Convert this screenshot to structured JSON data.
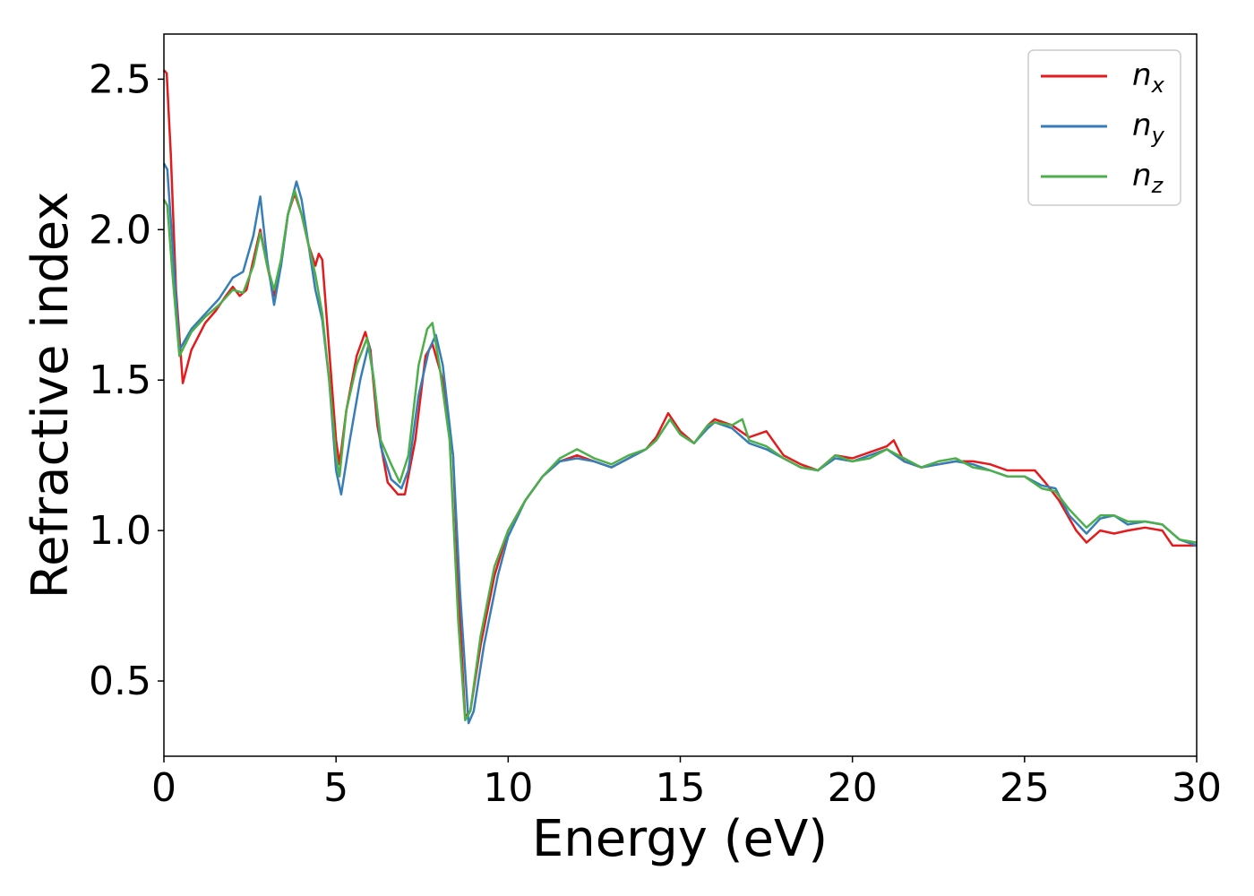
{
  "chart_data": {
    "type": "line",
    "title": "",
    "xlabel": "Energy (eV)",
    "ylabel": "Refractive index",
    "xlim": [
      0,
      30
    ],
    "ylim": [
      0.25,
      2.65
    ],
    "x_ticks": [
      0,
      5,
      10,
      15,
      20,
      25,
      30
    ],
    "x_tick_labels": [
      "0",
      "5",
      "10",
      "15",
      "20",
      "25",
      "30"
    ],
    "y_ticks": [
      0.5,
      1.0,
      1.5,
      2.0,
      2.5
    ],
    "y_tick_labels": [
      "0.5",
      "1.0",
      "1.5",
      "2.0",
      "2.5"
    ],
    "grid": false,
    "legend_position": "top-right",
    "series": [
      {
        "name": "n_x",
        "label_base": "n",
        "label_sub": "x",
        "color": "#e41a1c",
        "points": [
          [
            0,
            2.53
          ],
          [
            0.08,
            2.52
          ],
          [
            0.2,
            2.25
          ],
          [
            0.35,
            1.8
          ],
          [
            0.55,
            1.49
          ],
          [
            0.8,
            1.6
          ],
          [
            1.2,
            1.69
          ],
          [
            1.5,
            1.73
          ],
          [
            1.8,
            1.78
          ],
          [
            2.0,
            1.81
          ],
          [
            2.2,
            1.78
          ],
          [
            2.4,
            1.8
          ],
          [
            2.6,
            1.9
          ],
          [
            2.8,
            2.0
          ],
          [
            3.0,
            1.88
          ],
          [
            3.2,
            1.78
          ],
          [
            3.4,
            1.88
          ],
          [
            3.6,
            2.05
          ],
          [
            3.8,
            2.12
          ],
          [
            4.0,
            2.05
          ],
          [
            4.2,
            1.95
          ],
          [
            4.4,
            1.88
          ],
          [
            4.5,
            1.92
          ],
          [
            4.6,
            1.9
          ],
          [
            4.8,
            1.6
          ],
          [
            5.0,
            1.3
          ],
          [
            5.1,
            1.22
          ],
          [
            5.3,
            1.4
          ],
          [
            5.6,
            1.58
          ],
          [
            5.85,
            1.66
          ],
          [
            6.0,
            1.6
          ],
          [
            6.2,
            1.35
          ],
          [
            6.5,
            1.16
          ],
          [
            6.8,
            1.12
          ],
          [
            7.0,
            1.12
          ],
          [
            7.3,
            1.3
          ],
          [
            7.6,
            1.58
          ],
          [
            7.8,
            1.62
          ],
          [
            8.1,
            1.5
          ],
          [
            8.4,
            1.25
          ],
          [
            8.6,
            0.7
          ],
          [
            8.75,
            0.38
          ],
          [
            8.9,
            0.4
          ],
          [
            9.2,
            0.62
          ],
          [
            9.6,
            0.85
          ],
          [
            10,
            1.0
          ],
          [
            10.5,
            1.1
          ],
          [
            11,
            1.18
          ],
          [
            11.5,
            1.23
          ],
          [
            12,
            1.25
          ],
          [
            12.5,
            1.23
          ],
          [
            13,
            1.21
          ],
          [
            13.5,
            1.24
          ],
          [
            14,
            1.27
          ],
          [
            14.3,
            1.31
          ],
          [
            14.65,
            1.39
          ],
          [
            15,
            1.33
          ],
          [
            15.4,
            1.29
          ],
          [
            15.8,
            1.35
          ],
          [
            16,
            1.37
          ],
          [
            16.5,
            1.35
          ],
          [
            17,
            1.31
          ],
          [
            17.5,
            1.33
          ],
          [
            18,
            1.25
          ],
          [
            18.5,
            1.22
          ],
          [
            19,
            1.2
          ],
          [
            19.5,
            1.25
          ],
          [
            20,
            1.24
          ],
          [
            20.5,
            1.26
          ],
          [
            21,
            1.28
          ],
          [
            21.2,
            1.3
          ],
          [
            21.5,
            1.23
          ],
          [
            22,
            1.21
          ],
          [
            22.5,
            1.22
          ],
          [
            23,
            1.23
          ],
          [
            23.5,
            1.23
          ],
          [
            24,
            1.22
          ],
          [
            24.5,
            1.2
          ],
          [
            25,
            1.2
          ],
          [
            25.3,
            1.2
          ],
          [
            25.6,
            1.16
          ],
          [
            26,
            1.1
          ],
          [
            26.5,
            1.0
          ],
          [
            26.8,
            0.96
          ],
          [
            27.2,
            1.0
          ],
          [
            27.6,
            0.99
          ],
          [
            28,
            1.0
          ],
          [
            28.5,
            1.01
          ],
          [
            29,
            1.0
          ],
          [
            29.3,
            0.95
          ],
          [
            29.6,
            0.95
          ],
          [
            30,
            0.95
          ]
        ]
      },
      {
        "name": "n_y",
        "label_base": "n",
        "label_sub": "y",
        "color": "#377eb8",
        "points": [
          [
            0,
            2.22
          ],
          [
            0.1,
            2.2
          ],
          [
            0.25,
            1.95
          ],
          [
            0.45,
            1.6
          ],
          [
            0.8,
            1.67
          ],
          [
            1.2,
            1.72
          ],
          [
            1.6,
            1.77
          ],
          [
            2.0,
            1.84
          ],
          [
            2.3,
            1.86
          ],
          [
            2.6,
            1.98
          ],
          [
            2.8,
            2.11
          ],
          [
            3.0,
            1.9
          ],
          [
            3.2,
            1.75
          ],
          [
            3.4,
            1.88
          ],
          [
            3.6,
            2.05
          ],
          [
            3.85,
            2.16
          ],
          [
            4.0,
            2.1
          ],
          [
            4.2,
            1.95
          ],
          [
            4.4,
            1.8
          ],
          [
            4.6,
            1.7
          ],
          [
            4.8,
            1.5
          ],
          [
            5.0,
            1.2
          ],
          [
            5.15,
            1.12
          ],
          [
            5.4,
            1.3
          ],
          [
            5.7,
            1.5
          ],
          [
            5.95,
            1.62
          ],
          [
            6.1,
            1.5
          ],
          [
            6.3,
            1.28
          ],
          [
            6.6,
            1.17
          ],
          [
            6.9,
            1.14
          ],
          [
            7.1,
            1.2
          ],
          [
            7.4,
            1.45
          ],
          [
            7.7,
            1.6
          ],
          [
            7.9,
            1.65
          ],
          [
            8.1,
            1.55
          ],
          [
            8.4,
            1.25
          ],
          [
            8.6,
            0.8
          ],
          [
            8.85,
            0.36
          ],
          [
            9.0,
            0.4
          ],
          [
            9.3,
            0.62
          ],
          [
            9.7,
            0.85
          ],
          [
            10,
            0.98
          ],
          [
            10.5,
            1.1
          ],
          [
            11,
            1.18
          ],
          [
            11.5,
            1.23
          ],
          [
            12,
            1.24
          ],
          [
            12.5,
            1.23
          ],
          [
            13,
            1.21
          ],
          [
            13.5,
            1.24
          ],
          [
            14,
            1.27
          ],
          [
            14.3,
            1.3
          ],
          [
            14.7,
            1.37
          ],
          [
            15,
            1.32
          ],
          [
            15.4,
            1.29
          ],
          [
            15.8,
            1.34
          ],
          [
            16,
            1.36
          ],
          [
            16.5,
            1.34
          ],
          [
            17,
            1.29
          ],
          [
            17.5,
            1.27
          ],
          [
            18,
            1.24
          ],
          [
            18.5,
            1.21
          ],
          [
            19,
            1.2
          ],
          [
            19.5,
            1.24
          ],
          [
            20,
            1.23
          ],
          [
            20.5,
            1.25
          ],
          [
            21,
            1.27
          ],
          [
            21.5,
            1.23
          ],
          [
            22,
            1.21
          ],
          [
            22.5,
            1.22
          ],
          [
            23,
            1.23
          ],
          [
            23.5,
            1.22
          ],
          [
            24,
            1.2
          ],
          [
            24.5,
            1.18
          ],
          [
            25,
            1.18
          ],
          [
            25.5,
            1.15
          ],
          [
            25.9,
            1.14
          ],
          [
            26.3,
            1.05
          ],
          [
            26.8,
            0.99
          ],
          [
            27.2,
            1.04
          ],
          [
            27.6,
            1.05
          ],
          [
            28,
            1.02
          ],
          [
            28.5,
            1.03
          ],
          [
            29,
            1.02
          ],
          [
            29.5,
            0.97
          ],
          [
            30,
            0.95
          ]
        ]
      },
      {
        "name": "n_z",
        "label_base": "n",
        "label_sub": "z",
        "color": "#4daf4a",
        "points": [
          [
            0,
            2.1
          ],
          [
            0.1,
            2.08
          ],
          [
            0.25,
            1.85
          ],
          [
            0.45,
            1.58
          ],
          [
            0.8,
            1.66
          ],
          [
            1.2,
            1.71
          ],
          [
            1.6,
            1.75
          ],
          [
            2.0,
            1.8
          ],
          [
            2.3,
            1.79
          ],
          [
            2.6,
            1.88
          ],
          [
            2.8,
            1.99
          ],
          [
            3.0,
            1.88
          ],
          [
            3.2,
            1.8
          ],
          [
            3.4,
            1.9
          ],
          [
            3.6,
            2.05
          ],
          [
            3.8,
            2.13
          ],
          [
            4.0,
            2.05
          ],
          [
            4.2,
            1.95
          ],
          [
            4.4,
            1.85
          ],
          [
            4.6,
            1.72
          ],
          [
            4.8,
            1.5
          ],
          [
            5.0,
            1.25
          ],
          [
            5.1,
            1.18
          ],
          [
            5.3,
            1.4
          ],
          [
            5.6,
            1.55
          ],
          [
            5.9,
            1.64
          ],
          [
            6.1,
            1.5
          ],
          [
            6.3,
            1.3
          ],
          [
            6.6,
            1.22
          ],
          [
            6.85,
            1.16
          ],
          [
            7.1,
            1.25
          ],
          [
            7.4,
            1.55
          ],
          [
            7.65,
            1.67
          ],
          [
            7.8,
            1.69
          ],
          [
            8.0,
            1.55
          ],
          [
            8.3,
            1.3
          ],
          [
            8.55,
            0.7
          ],
          [
            8.75,
            0.37
          ],
          [
            8.9,
            0.4
          ],
          [
            9.2,
            0.65
          ],
          [
            9.6,
            0.88
          ],
          [
            10,
            1.0
          ],
          [
            10.5,
            1.1
          ],
          [
            11,
            1.18
          ],
          [
            11.5,
            1.24
          ],
          [
            12,
            1.27
          ],
          [
            12.5,
            1.24
          ],
          [
            13,
            1.22
          ],
          [
            13.5,
            1.25
          ],
          [
            14,
            1.27
          ],
          [
            14.3,
            1.3
          ],
          [
            14.7,
            1.37
          ],
          [
            15,
            1.32
          ],
          [
            15.4,
            1.29
          ],
          [
            15.8,
            1.35
          ],
          [
            16,
            1.36
          ],
          [
            16.5,
            1.35
          ],
          [
            16.8,
            1.37
          ],
          [
            17,
            1.3
          ],
          [
            17.5,
            1.28
          ],
          [
            18,
            1.24
          ],
          [
            18.5,
            1.21
          ],
          [
            19,
            1.2
          ],
          [
            19.5,
            1.25
          ],
          [
            20,
            1.23
          ],
          [
            20.5,
            1.24
          ],
          [
            21,
            1.27
          ],
          [
            21.5,
            1.24
          ],
          [
            22,
            1.21
          ],
          [
            22.5,
            1.23
          ],
          [
            23,
            1.24
          ],
          [
            23.5,
            1.21
          ],
          [
            24,
            1.2
          ],
          [
            24.5,
            1.18
          ],
          [
            25,
            1.18
          ],
          [
            25.5,
            1.14
          ],
          [
            25.9,
            1.13
          ],
          [
            26.3,
            1.07
          ],
          [
            26.8,
            1.01
          ],
          [
            27.2,
            1.05
          ],
          [
            27.6,
            1.05
          ],
          [
            28,
            1.03
          ],
          [
            28.5,
            1.03
          ],
          [
            29,
            1.02
          ],
          [
            29.5,
            0.97
          ],
          [
            30,
            0.96
          ]
        ]
      }
    ]
  }
}
